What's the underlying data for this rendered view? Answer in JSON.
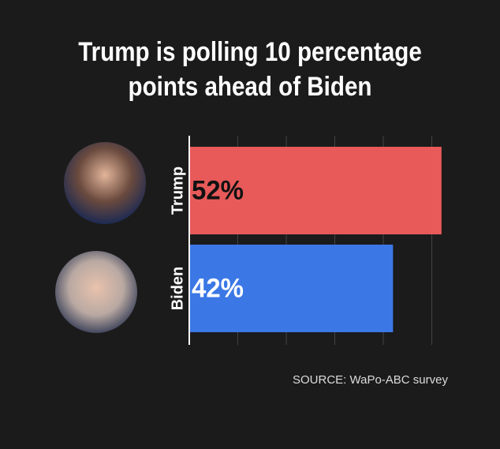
{
  "chart_data": {
    "type": "bar",
    "orientation": "horizontal",
    "title": "Trump is polling 10 percentage points ahead of Biden",
    "categories": [
      "Trump",
      "Biden"
    ],
    "values": [
      52,
      42
    ],
    "value_labels": [
      "52%",
      "42%"
    ],
    "colors": [
      "#e85a5a",
      "#3b78e6"
    ],
    "xlim": [
      0,
      53
    ],
    "xticks": [
      10,
      20,
      30,
      40,
      50
    ],
    "grid": true,
    "source": "SOURCE: WaPo-ABC survey"
  }
}
